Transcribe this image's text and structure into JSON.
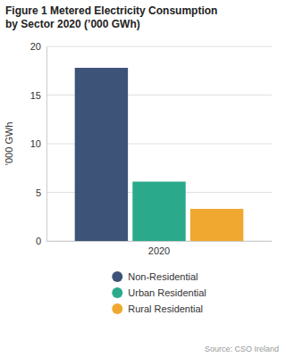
{
  "chart_data": {
    "type": "bar",
    "title": "Figure 1 Metered Electricity Consumption\nby Sector 2020 (’000 GWh)",
    "categories": [
      "2020"
    ],
    "series": [
      {
        "name": "Non-Residential",
        "color": "#3d5478",
        "values": [
          17.8
        ]
      },
      {
        "name": "Urban Residential",
        "color": "#2aaa8a",
        "values": [
          6.1
        ]
      },
      {
        "name": "Rural Residential",
        "color": "#f0a830",
        "values": [
          3.3
        ]
      }
    ],
    "ylabel": "’000 GWh",
    "ylim": [
      0,
      20
    ],
    "yticks": [
      0,
      5,
      10,
      15,
      20
    ],
    "grid": true,
    "legend": "bottom",
    "annotations": [
      "Source: CSO Ireland"
    ]
  }
}
